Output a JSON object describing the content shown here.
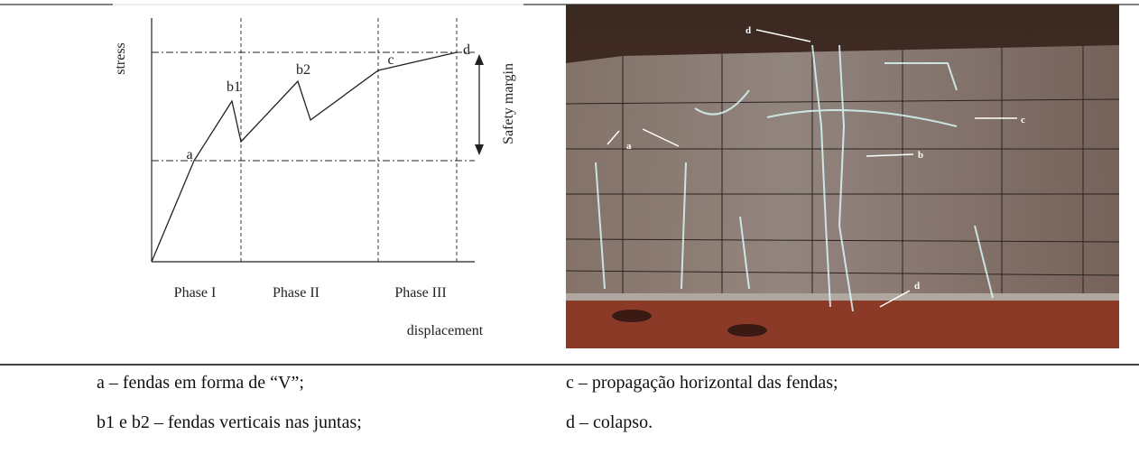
{
  "figure": {
    "diagram": {
      "y_axis_label": "stress",
      "x_axis_label": "displacement",
      "point_labels": [
        "a",
        "b1",
        "b2",
        "c",
        "d"
      ],
      "annotation": "Safety margin",
      "phases": [
        "Phase I",
        "Phase II",
        "Phase III"
      ]
    },
    "photo": {
      "labels": [
        "d",
        "a",
        "c",
        "b",
        "d"
      ]
    }
  },
  "legend": {
    "items": [
      "a – fendas em forma de “V”;",
      "c – propagação horizontal das fendas;",
      "b1 e b2 – fendas verticais nas juntas;",
      "d – colapso."
    ]
  }
}
